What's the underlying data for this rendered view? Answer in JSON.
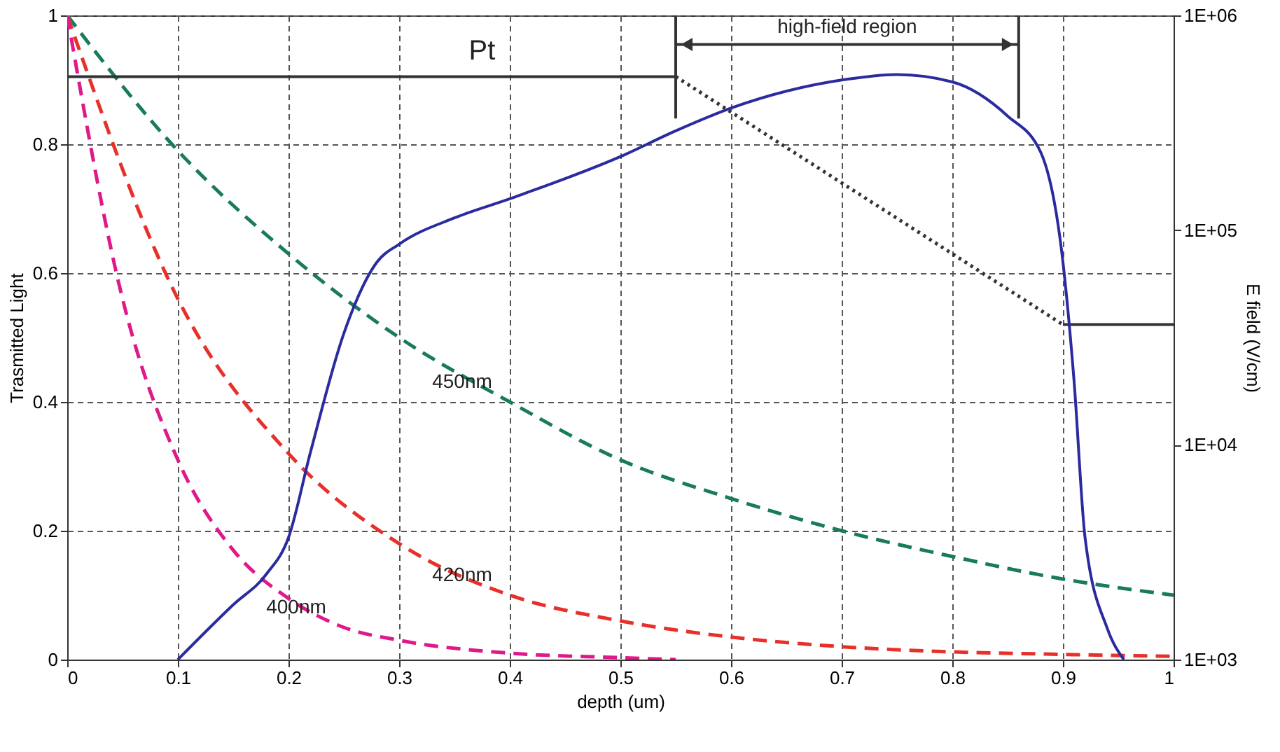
{
  "chart_data": {
    "type": "line",
    "xlabel": "depth (um)",
    "ylabel": "Trasmitted Light",
    "y2label": "E field (V/cm)",
    "xlim": [
      0,
      1
    ],
    "xticks": [
      0,
      0.1,
      0.2,
      0.3,
      0.4,
      0.5,
      0.6,
      0.7,
      0.8,
      0.9,
      1
    ],
    "ylim": [
      0,
      1
    ],
    "yticks": [
      0,
      0.2,
      0.4,
      0.6,
      0.8,
      1
    ],
    "y2lim": [
      1000,
      1000000
    ],
    "y2ticks": [
      {
        "value": 1000,
        "label": "1E+03"
      },
      {
        "value": 10000,
        "label": "1E+04"
      },
      {
        "value": 100000,
        "label": "1E+05"
      },
      {
        "value": 1000000,
        "label": "1E+06"
      }
    ],
    "log": "y2",
    "grid": true,
    "marker": "none",
    "series": [
      {
        "name": "450nm",
        "color": "#1a7a5e",
        "line_style": "dashed",
        "x": [
          0,
          0.1,
          0.2,
          0.3,
          0.4,
          0.5,
          0.6,
          0.7,
          0.8,
          0.9,
          1
        ],
        "values": [
          1,
          0.79,
          0.63,
          0.5,
          0.4,
          0.31,
          0.25,
          0.2,
          0.16,
          0.125,
          0.1
        ]
      },
      {
        "name": "420nm",
        "color": "#e8302a",
        "line_style": "dashed",
        "x": [
          0,
          0.1,
          0.2,
          0.3,
          0.4,
          0.5,
          0.6,
          0.7,
          0.8,
          0.9,
          1
        ],
        "values": [
          1,
          0.56,
          0.32,
          0.18,
          0.1,
          0.06,
          0.035,
          0.02,
          0.012,
          0.008,
          0.005
        ]
      },
      {
        "name": "400nm",
        "color": "#e0198a",
        "line_style": "dashed",
        "x": [
          0,
          0.05,
          0.1,
          0.15,
          0.2,
          0.25,
          0.3,
          0.4,
          0.5,
          0.55
        ],
        "values": [
          1,
          0.56,
          0.31,
          0.17,
          0.095,
          0.05,
          0.03,
          0.01,
          0.003,
          0
        ]
      },
      {
        "color": "#2b2ba0",
        "line_style": "solid",
        "axis": "y2",
        "x": [
          0.1,
          0.15,
          0.18,
          0.2,
          0.22,
          0.25,
          0.28,
          0.3,
          0.35,
          0.4,
          0.5,
          0.55,
          0.6,
          0.7,
          0.75,
          0.8,
          0.85,
          0.88,
          0.9,
          0.91,
          0.92,
          0.94,
          0.955
        ],
        "values": [
          1000,
          1800,
          2500,
          3700,
          9300,
          33000,
          71000,
          86000,
          114000,
          140000,
          220000,
          290000,
          370000,
          500000,
          530000,
          490000,
          340000,
          230000,
          71000,
          20000,
          3700,
          1400,
          1000
        ]
      },
      {
        "name": "Pt",
        "color": "#333333",
        "line_style": "solid",
        "x": [
          0,
          0.55
        ],
        "values": [
          0.905,
          0.905
        ]
      },
      {
        "color": "#333333",
        "line_style": "dotted",
        "x": [
          0.55,
          0.9
        ],
        "values": [
          0.905,
          0.52
        ]
      },
      {
        "color": "#333333",
        "line_style": "solid",
        "x": [
          0.9,
          1
        ],
        "values": [
          0.52,
          0.52
        ]
      }
    ],
    "ref_lines": [
      {
        "axis": "x",
        "value": 0.55,
        "color": "#333333"
      },
      {
        "axis": "x",
        "value": 0.86,
        "color": "#333333"
      }
    ],
    "annotations": [
      "high-field region"
    ]
  }
}
